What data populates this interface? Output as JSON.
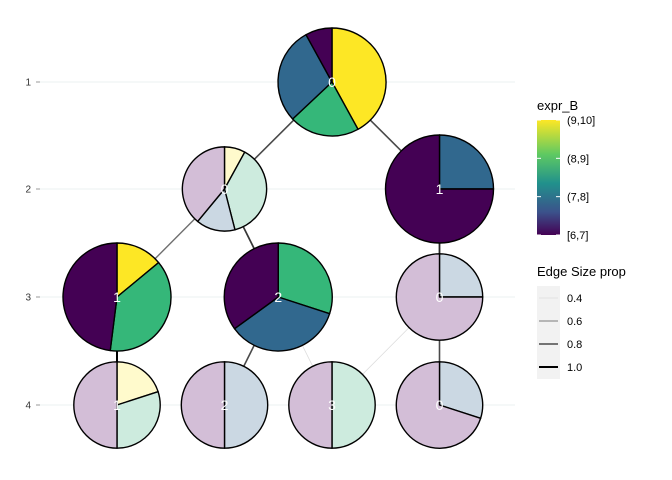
{
  "chart_data": {
    "type": "clustree",
    "y_tick_labels": [
      "1",
      "2",
      "3",
      "4"
    ],
    "color_legend": {
      "title": "expr_B",
      "levels": [
        "(9,10]",
        "(8,9]",
        "(7,8]",
        "[6,7]"
      ],
      "colors": [
        "#FDE725",
        "#35B779",
        "#31688E",
        "#440154"
      ]
    },
    "size_legend": {
      "title": "Edge Size prop",
      "labels": [
        "0.4",
        "0.6",
        "0.8",
        "1.0"
      ],
      "values": [
        0.4,
        0.6,
        0.8,
        1.0
      ]
    },
    "nodes": [
      {
        "label": "0",
        "level": 1,
        "slot": 2.0,
        "size": 1.0,
        "faded": false,
        "slices": [
          0.42,
          0.21,
          0.29,
          0.08
        ]
      },
      {
        "label": "0",
        "level": 2,
        "slot": 1.0,
        "size": 0.78,
        "faded": true,
        "slices": [
          0.08,
          0.38,
          0.15,
          0.39
        ]
      },
      {
        "label": "1",
        "level": 2,
        "slot": 3.0,
        "size": 1.0,
        "faded": false,
        "slices": [
          0.0,
          0.0,
          0.25,
          0.75
        ]
      },
      {
        "label": "1",
        "level": 3,
        "slot": 0.0,
        "size": 1.0,
        "faded": false,
        "slices": [
          0.14,
          0.38,
          0.0,
          0.48
        ]
      },
      {
        "label": "2",
        "level": 3,
        "slot": 1.5,
        "size": 1.0,
        "faded": false,
        "slices": [
          0.0,
          0.3,
          0.35,
          0.35
        ]
      },
      {
        "label": "0",
        "level": 3,
        "slot": 3.0,
        "size": 0.8,
        "faded": true,
        "slices": [
          0.0,
          0.0,
          0.25,
          0.75
        ]
      },
      {
        "label": "1",
        "level": 4,
        "slot": 0.0,
        "size": 0.8,
        "faded": true,
        "slices": [
          0.2,
          0.3,
          0.0,
          0.5
        ]
      },
      {
        "label": "2",
        "level": 4,
        "slot": 1.0,
        "size": 0.8,
        "faded": true,
        "slices": [
          0.0,
          0.0,
          0.5,
          0.5
        ]
      },
      {
        "label": "3",
        "level": 4,
        "slot": 2.0,
        "size": 0.8,
        "faded": true,
        "slices": [
          0.0,
          0.5,
          0.0,
          0.5
        ]
      },
      {
        "label": "0",
        "level": 4,
        "slot": 3.0,
        "size": 0.8,
        "faded": true,
        "slices": [
          0.0,
          0.0,
          0.3,
          0.7
        ]
      }
    ],
    "edges": [
      {
        "from": 0,
        "to": 1,
        "prop": 0.8
      },
      {
        "from": 0,
        "to": 2,
        "prop": 0.8
      },
      {
        "from": 1,
        "to": 3,
        "prop": 0.7
      },
      {
        "from": 1,
        "to": 4,
        "prop": 0.85
      },
      {
        "from": 2,
        "to": 5,
        "prop": 0.9
      },
      {
        "from": 3,
        "to": 6,
        "prop": 1.0
      },
      {
        "from": 4,
        "to": 7,
        "prop": 0.8
      },
      {
        "from": 4,
        "to": 8,
        "prop": 0.4
      },
      {
        "from": 5,
        "to": 8,
        "prop": 0.4
      },
      {
        "from": 5,
        "to": 9,
        "prop": 0.8
      }
    ]
  }
}
